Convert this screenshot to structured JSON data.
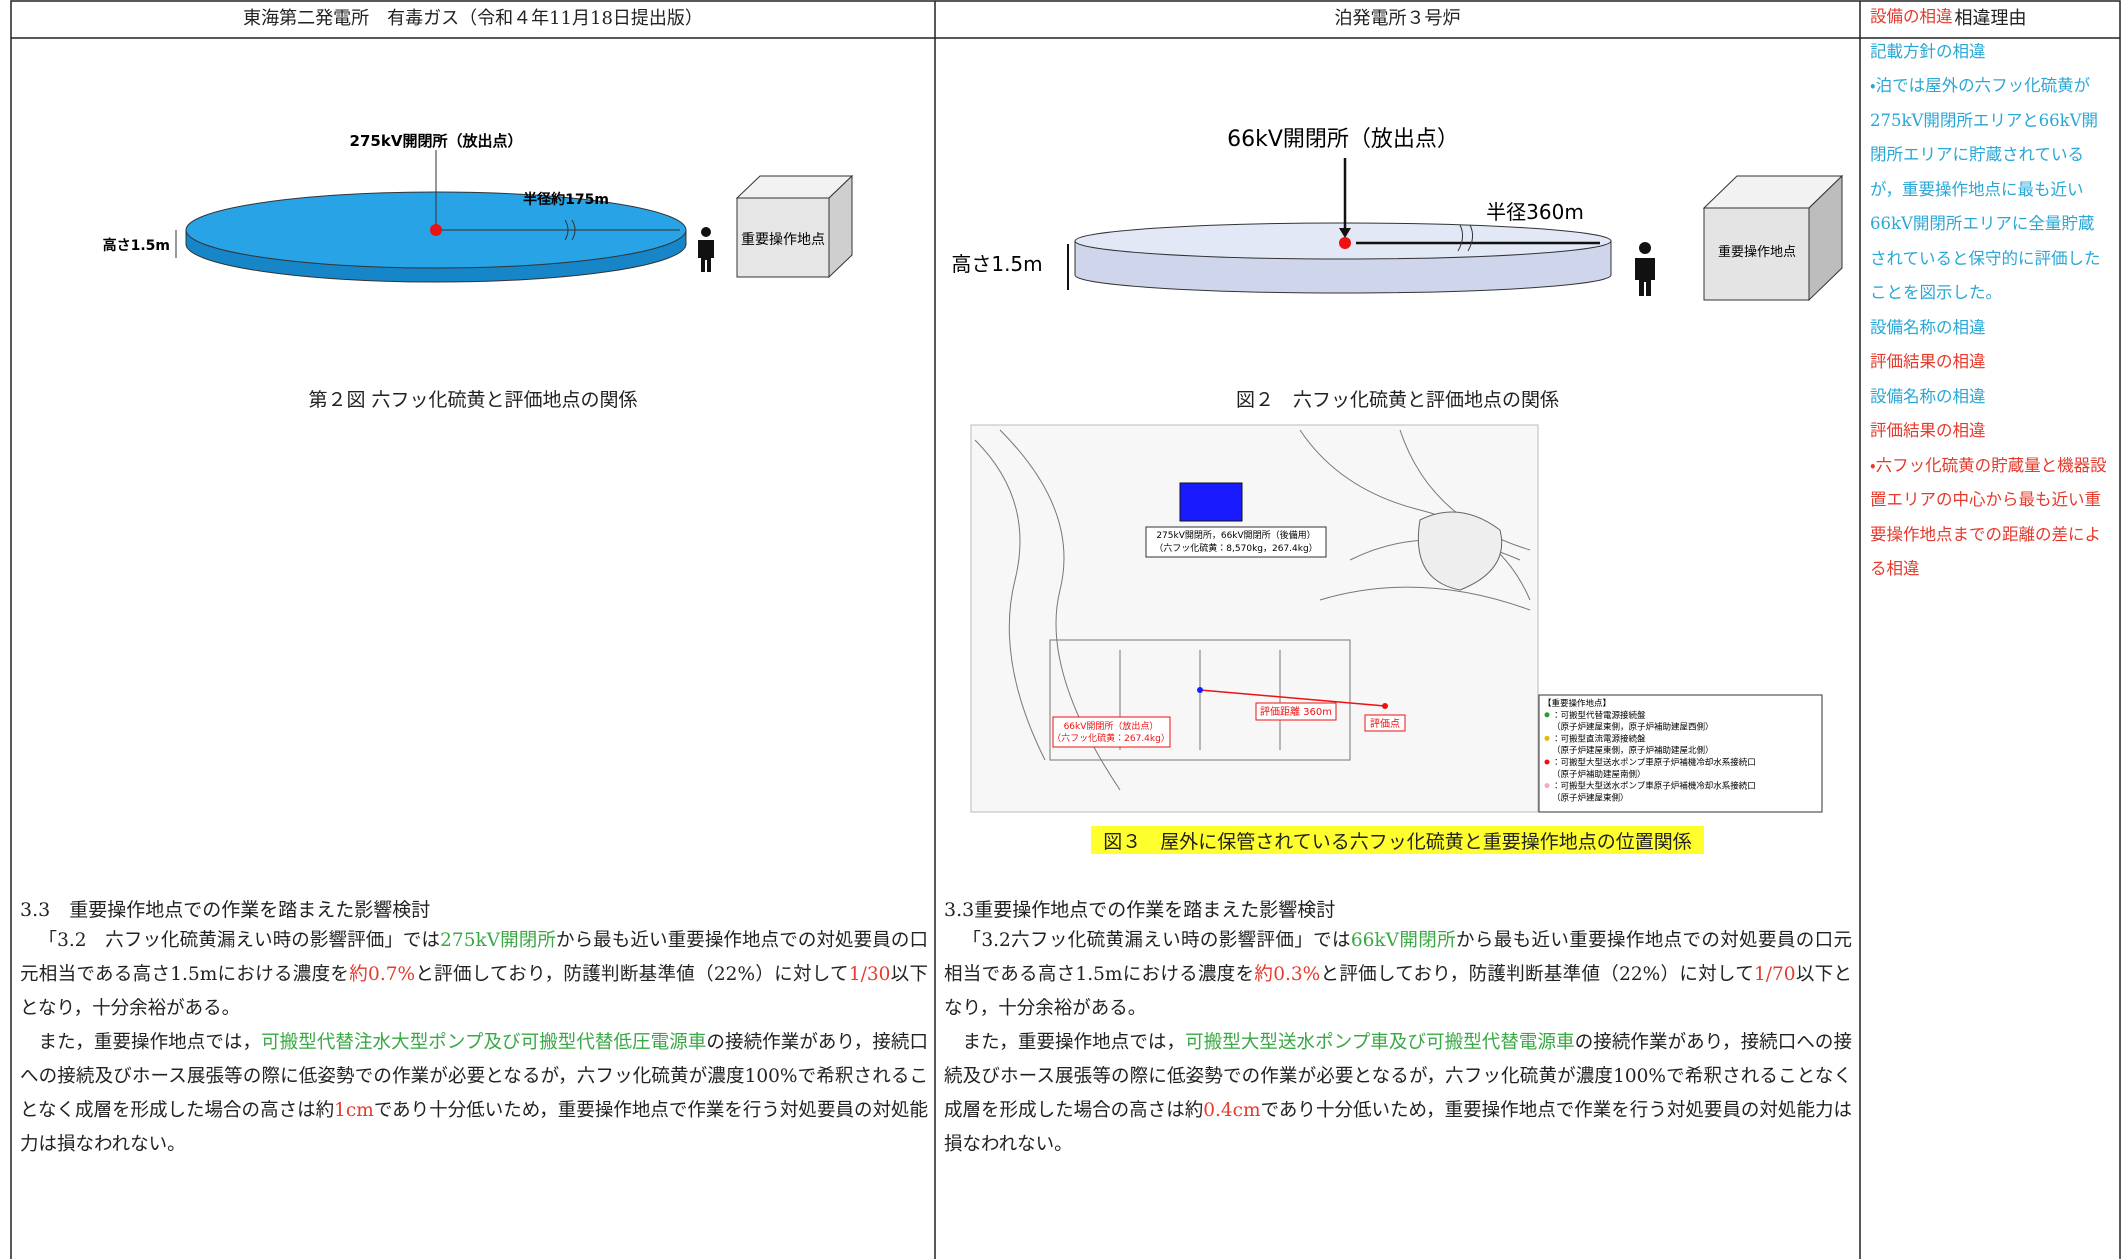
{
  "header": [
    "東海第二発電所　有毒ガス（令和４年11月18日提出版）",
    "泊発電所３号炉",
    "相違理由"
  ],
  "colors": {
    "green": "#3aa845",
    "red": "#e53a2c",
    "cyan": "#2aa7d6"
  },
  "left": {
    "figure": {
      "release_label": "275kV開閉所（放出点）",
      "radius_label": "半径約175m",
      "height_label": "高さ1.5m",
      "box_label": "重要操作地点",
      "caption": "第２図 六フッ化硫黄と評価地点の関係"
    },
    "heading": "3.3　重要操作地点での作業を踏まえた影響検討",
    "paragraphs": [
      [
        {
          "text": "「3.2　六フッ化硫黄漏えい時の影響評価」では"
        },
        {
          "text": "275kV開閉所",
          "color": "green"
        },
        {
          "text": "から最も近い重要操作地点での対処要員の口元相当である高さ1.5mにおける濃度を"
        },
        {
          "text": "約0.7%",
          "color": "red"
        },
        {
          "text": "と評価しており，防護判断基準値（22%）に対して"
        },
        {
          "text": "1/30",
          "color": "red"
        },
        {
          "text": "以下となり，十分余裕がある。"
        }
      ],
      [
        {
          "text": "また，重要操作地点では，"
        },
        {
          "text": "可搬型代替注水大型ポンプ及び可搬型代替低圧電源車",
          "color": "green"
        },
        {
          "text": "の接続作業があり，接続口への接続及びホース展張等の際に低姿勢での作業が必要となるが，六フッ化硫黄が濃度100%で希釈されることなく成層を形成した場合の高さは約"
        },
        {
          "text": "1cm",
          "color": "red"
        },
        {
          "text": "であり十分低いため，重要操作地点で作業を行う対処要員の対処能力は損なわれない。"
        }
      ]
    ]
  },
  "middle": {
    "figure": {
      "release_label": "66kV開閉所（放出点）",
      "radius_label": "半径360m",
      "height_label": "高さ1.5m",
      "box_label": "重要操作地点",
      "caption": "図２　六フッ化硫黄と評価地点の関係"
    },
    "map": {
      "labels": [
        "275kV開閉所，66kV開閉所（後備用）",
        "（六フッ化硫黄：8,570kg，267.4kg）",
        "66kV開閉所（放出点）",
        "（六フッ化硫黄：267.4kg）",
        "評価距離 360m",
        "評価点"
      ],
      "legend": [
        "【重要操作地点】",
        "：可搬型代替電源接続盤",
        "（原子炉建屋東側，原子炉補助建屋西側）",
        "：可搬型直流電源接続盤",
        "（原子炉建屋東側，原子炉補助建屋北側）",
        "：可搬型大型送水ポンプ車原子炉補機冷却水系接続口",
        "（原子炉補助建屋南側）",
        "：可搬型大型送水ポンプ車原子炉補機冷却水系接続口",
        "（原子炉建屋東側）"
      ],
      "caption": "図３　屋外に保管されている六フッ化硫黄と重要操作地点の位置関係"
    },
    "heading": "3.3重要操作地点での作業を踏まえた影響検討",
    "paragraphs": [
      [
        {
          "text": "「3.2六フッ化硫黄漏えい時の影響評価」では"
        },
        {
          "text": "66kV開閉所",
          "color": "green"
        },
        {
          "text": "から最も近い重要操作地点での対処要員の口元相当である高さ1.5mにおける濃度を"
        },
        {
          "text": "約0.3%",
          "color": "red"
        },
        {
          "text": "と評価しており，防護判断基準値（22%）に対して"
        },
        {
          "text": "1/70",
          "color": "red"
        },
        {
          "text": "以下となり，十分余裕がある。"
        }
      ],
      [
        {
          "text": "また，重要操作地点では，"
        },
        {
          "text": "可搬型大型送水ポンプ車及び可搬型代替電源車",
          "color": "green"
        },
        {
          "text": "の接続作業があり，接続口への接続及びホース展張等の際に低姿勢での作業が必要となるが，六フッ化硫黄が濃度100%で希釈されることなく成層を形成した場合の高さは約"
        },
        {
          "text": "0.4cm",
          "color": "red"
        },
        {
          "text": "であり十分低いため，重要操作地点で作業を行う対処要員の対処能力は損なわれない。"
        }
      ]
    ]
  },
  "notes": [
    {
      "color": "red",
      "texts": [
        "設備の相違"
      ]
    },
    {
      "color": "cyan",
      "texts": [
        "記載方針の相違",
        "・泊では屋外の六フッ化硫黄が275kV開閉所エリアと66kV開閉所エリアに貯蔵されているが，重要操作地点に最も近い66kV開閉所エリアに全量貯蔵されていると保守的に評価したことを図示した。"
      ]
    },
    {
      "color": "cyan",
      "texts": [
        "設備名称の相違"
      ]
    },
    {
      "color": "red",
      "texts": [
        "評価結果の相違"
      ]
    },
    {
      "color": "cyan",
      "texts": [
        "設備名称の相違"
      ]
    },
    {
      "color": "red",
      "texts": [
        "評価結果の相違",
        "・六フッ化硫黄の貯蔵量と機器設置エリアの中心から最も近い重要操作地点までの距離の差による相違"
      ]
    }
  ]
}
